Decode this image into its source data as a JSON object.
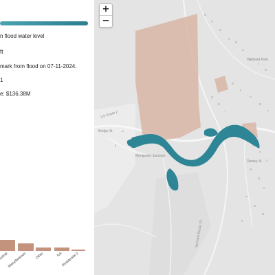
{
  "sidebar": {
    "lines": [
      "n flood water level",
      "ft",
      "mark from flood on 07-11-2024.",
      "1",
      "e: $136.38M"
    ]
  },
  "map_controls": {
    "zoom_in": "+",
    "zoom_out": "−"
  },
  "map_labels": {
    "route2": "US Route 2",
    "bridge": "Bridge St",
    "montpelier_junction": "Montpelier Junction",
    "vermont_route": "Vermont Route 12",
    "dewey": "Dewey St",
    "hubbard": "Hubbard Park"
  },
  "colors": {
    "flood": "#2e8596",
    "parcel": "#d9b6a6",
    "bar": "#c4937e",
    "slider": "#3a95a5"
  },
  "chart_data": {
    "type": "bar",
    "categories": [
      "...ustrial",
      "Miscellaneous",
      "Other",
      "NA",
      "Residential 2"
    ],
    "values": [
      16,
      11,
      5,
      5,
      2
    ],
    "leading_partial_bar_value": 16,
    "title": "",
    "xlabel": "",
    "ylabel": ""
  }
}
